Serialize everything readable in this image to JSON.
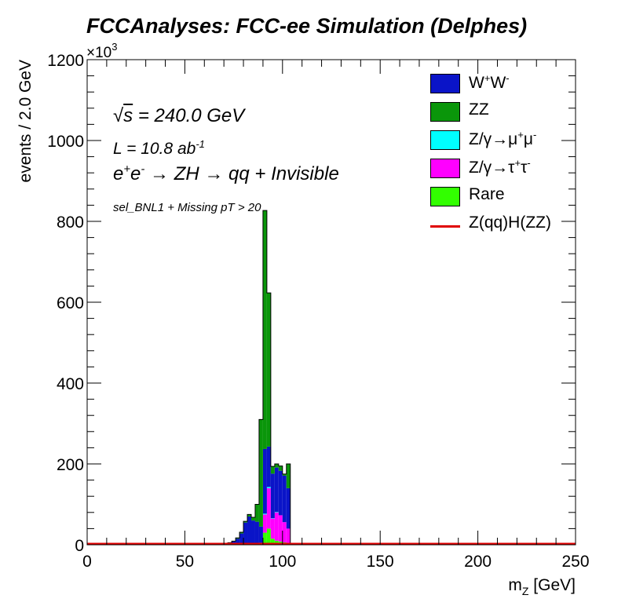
{
  "title": "FCCAnalyses: FCC-ee Simulation (Delphes)",
  "annotations": {
    "sqrts_pre": "√",
    "sqrts_s": "s",
    "sqrts_post": " = 240.0 GeV",
    "lumi": "L = 10.8 ab",
    "lumi_exp": "-1",
    "process_e1": "e",
    "process_sup1": "+",
    "process_e2": "e",
    "process_sup2": "-",
    "process_rest": " → ZH → qq + Invisible",
    "selection": "sel_BNL1 + Missing pT > 20"
  },
  "legend": [
    {
      "label": "W",
      "sup1": "+",
      "label2": "W",
      "sup2": "-",
      "color": "#0a14c8",
      "kind": "fill"
    },
    {
      "label": "ZZ",
      "color": "#0a960a",
      "kind": "fill"
    },
    {
      "label": "Z/γ→μ",
      "sup1": "+",
      "label2": "μ",
      "sup2": "-",
      "color": "#00ffff",
      "kind": "fill"
    },
    {
      "label": "Z/γ→τ",
      "sup1": "+",
      "label2": "τ",
      "sup2": "-",
      "color": "#ff00ff",
      "kind": "fill"
    },
    {
      "label": "Rare",
      "color": "#32ff00",
      "kind": "fill"
    },
    {
      "label": "Z(qq)H(ZZ)",
      "color": "#e00000",
      "kind": "line"
    }
  ],
  "chart_data": {
    "type": "bar",
    "stacked": true,
    "title": "FCCAnalyses: FCC-ee Simulation (Delphes)",
    "xlabel": "m",
    "xlabel_sub": "Z",
    "xlabel_unit": " [GeV]",
    "ylabel": "events / 2.0 GeV",
    "y_exponent_label": "×10",
    "y_exponent": "3",
    "xlim": [
      0,
      250
    ],
    "ylim": [
      0,
      1200
    ],
    "bin_width": 2.0,
    "x_ticks": [
      0,
      50,
      100,
      150,
      200,
      250
    ],
    "y_ticks": [
      0,
      200,
      400,
      600,
      800,
      1000,
      1200
    ],
    "bin_edges_low": [
      70,
      72,
      74,
      76,
      78,
      80,
      82,
      84,
      86,
      88,
      90,
      92,
      94,
      96,
      98,
      100,
      102,
      104
    ],
    "series": [
      {
        "name": "Rare",
        "color": "#32ff00",
        "values": [
          0,
          0,
          0,
          0,
          0,
          0,
          0,
          0,
          0,
          0,
          30,
          40,
          15,
          10,
          8,
          6,
          5,
          0
        ]
      },
      {
        "name": "Z/γ→τ+τ-",
        "color": "#ff00ff",
        "values": [
          0,
          0,
          0,
          0,
          0,
          0,
          0,
          0,
          2,
          5,
          45,
          100,
          50,
          70,
          65,
          50,
          35,
          0
        ]
      },
      {
        "name": "Z/γ→μ+μ-",
        "color": "#00ffff",
        "values": [
          0,
          0,
          0,
          0,
          0,
          0,
          0,
          0,
          0,
          0,
          2,
          3,
          1,
          1,
          0,
          0,
          0,
          0
        ]
      },
      {
        "name": "W+W-",
        "color": "#0a14c8",
        "values": [
          2,
          5,
          8,
          15,
          28,
          55,
          70,
          60,
          55,
          40,
          160,
          100,
          110,
          110,
          110,
          115,
          100,
          0
        ]
      },
      {
        "name": "ZZ",
        "color": "#0a960a",
        "values": [
          0,
          0,
          1,
          2,
          3,
          3,
          5,
          8,
          43,
          265,
          590,
          380,
          18,
          9,
          12,
          4,
          60,
          0
        ]
      },
      {
        "name": "Z(qq)H(ZZ)",
        "color": "#e00000",
        "values": [
          0,
          0,
          0,
          0,
          0,
          0,
          0,
          0,
          0,
          0,
          0,
          0,
          0,
          0,
          0,
          0,
          0,
          0
        ]
      }
    ]
  }
}
